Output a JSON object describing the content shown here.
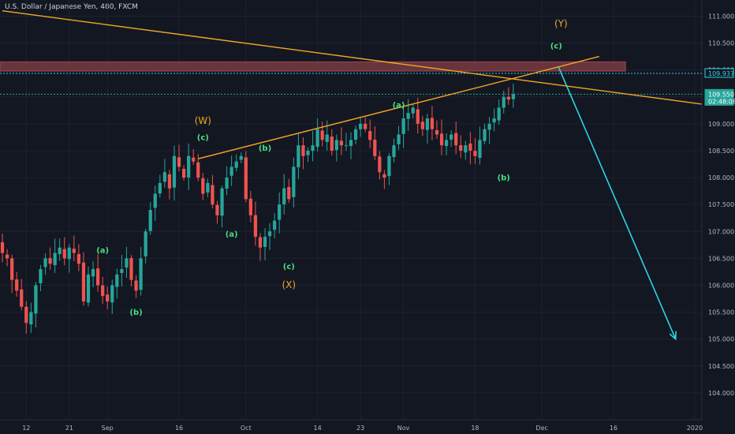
{
  "header": {
    "title": "U.S. Dollar / Japanese Yen, 480, FXCM"
  },
  "colors": {
    "background": "#131722",
    "bull": "#26a69a",
    "bear": "#ef5350",
    "trendline": "#f5a623",
    "projection": "#2dd4e0",
    "resistance_zone": "#7a3a42",
    "label_green": "#4ade80",
    "label_orange": "#f5a623",
    "axis_text": "#b2b5be"
  },
  "chart_data": {
    "type": "candlestick",
    "ylim": [
      103.5,
      111.3
    ],
    "y_ticks": [
      104.0,
      104.5,
      105.0,
      105.5,
      106.0,
      106.5,
      107.0,
      107.5,
      108.0,
      108.5,
      109.0,
      109.5,
      110.0,
      110.5,
      111.0
    ],
    "y_tick_labels": [
      "104.000",
      "104.500",
      "105.000",
      "105.500",
      "106.000",
      "106.500",
      "107.000",
      "107.500",
      "108.000",
      "108.500",
      "109.000",
      "109.500",
      "110.000",
      "110.500",
      "111.000"
    ],
    "x_tick_labels": [
      "12",
      "21",
      "Sep",
      "16",
      "Oct",
      "14",
      "23",
      "Nov",
      "18",
      "Dec",
      "16",
      "2020"
    ],
    "x_tick_bars": [
      5,
      14,
      22,
      37,
      51,
      66,
      75,
      84,
      99,
      113,
      128,
      145
    ],
    "bar_count_visible": 147,
    "price_markers": [
      {
        "value": 109.937,
        "label": "109.937",
        "style": "dotted",
        "color": "#2dd4e0"
      },
      {
        "value": 109.55,
        "label": "109.550",
        "sub_label": "02:48:08",
        "style": "dotted",
        "color": "#26a69a"
      }
    ],
    "resistance_zone": {
      "from": 109.98,
      "to": 110.15,
      "bar_start": 0,
      "bar_end": 131
    },
    "closes": [
      106.6,
      106.5,
      106.1,
      105.9,
      105.6,
      105.3,
      105.5,
      106.0,
      106.3,
      106.5,
      106.4,
      106.6,
      106.7,
      106.5,
      106.7,
      106.6,
      106.4,
      105.7,
      106.2,
      106.3,
      106.0,
      105.8,
      105.7,
      106.0,
      106.2,
      106.3,
      106.5,
      106.1,
      105.9,
      106.5,
      107.0,
      107.4,
      107.7,
      107.9,
      108.1,
      107.8,
      108.4,
      108.2,
      108.0,
      108.4,
      108.3,
      108.0,
      107.7,
      107.9,
      107.5,
      107.3,
      107.8,
      108.0,
      108.2,
      108.3,
      108.4,
      107.6,
      107.3,
      106.9,
      106.7,
      106.9,
      107.0,
      107.2,
      107.5,
      107.8,
      107.6,
      108.2,
      108.6,
      108.4,
      108.5,
      108.6,
      108.9,
      108.7,
      108.8,
      108.5,
      108.7,
      108.6,
      108.6,
      108.7,
      108.9,
      109.0,
      108.9,
      108.7,
      108.4,
      108.1,
      108.0,
      108.4,
      108.6,
      108.8,
      109.1,
      109.2,
      109.3,
      109.0,
      108.9,
      109.1,
      108.9,
      108.8,
      108.6,
      108.7,
      108.8,
      108.6,
      108.5,
      108.6,
      108.5,
      108.4,
      108.7,
      108.9,
      109.0,
      109.1,
      109.3,
      109.5,
      109.45,
      109.55
    ],
    "waves": [
      {
        "label": "(a)",
        "bar": 21,
        "value": 106.6,
        "color": "green"
      },
      {
        "label": "(b)",
        "bar": 28,
        "value": 105.45,
        "color": "green"
      },
      {
        "label": "(W)",
        "bar": 42,
        "value": 109.0,
        "color": "orange"
      },
      {
        "label": "(c)",
        "bar": 42,
        "value": 108.7,
        "color": "green"
      },
      {
        "label": "(a)",
        "bar": 48,
        "value": 106.9,
        "color": "green"
      },
      {
        "label": "(b)",
        "bar": 55,
        "value": 108.5,
        "color": "green"
      },
      {
        "label": "(c)",
        "bar": 60,
        "value": 106.3,
        "color": "green"
      },
      {
        "label": "(X)",
        "bar": 60,
        "value": 105.95,
        "color": "orange"
      },
      {
        "label": "(a)",
        "bar": 83,
        "value": 109.3,
        "color": "green"
      },
      {
        "label": "(b)",
        "bar": 105,
        "value": 107.95,
        "color": "green"
      },
      {
        "label": "(c)",
        "bar": 116,
        "value": 110.4,
        "color": "green"
      },
      {
        "label": "(Y)",
        "bar": 117,
        "value": 110.8,
        "color": "orange"
      }
    ],
    "trendlines": [
      {
        "name": "descending",
        "x1_bar": 0,
        "y1": 111.1,
        "x2_bar": 147,
        "y2": 109.36
      },
      {
        "name": "ascending",
        "x1_bar": 41,
        "y1": 108.35,
        "x2_bar": 125,
        "y2": 110.25
      }
    ],
    "projection": {
      "from_bar": 116.5,
      "from_value": 110.05,
      "to_bar": 141,
      "to_value": 105.0
    }
  }
}
